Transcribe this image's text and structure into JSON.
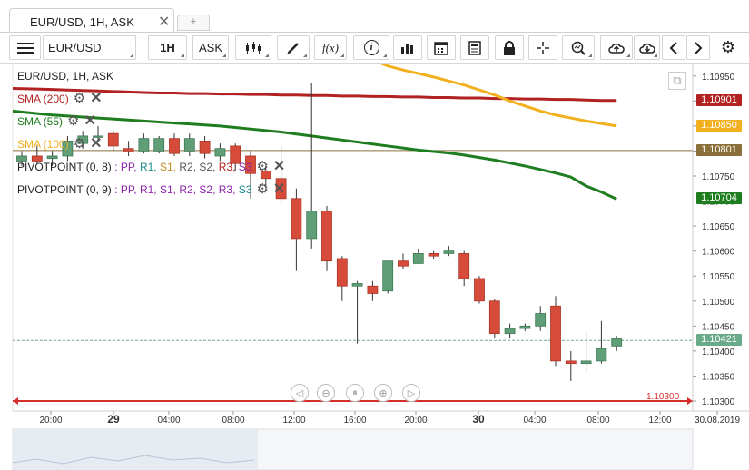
{
  "tab": {
    "title": "EUR/USD, 1H, ASK",
    "close": "✕",
    "add": "+"
  },
  "toolbar": {
    "symbol": "EUR/USD",
    "period": "1H",
    "side": "ASK",
    "icons": [
      "menu-icon",
      "candlestick-icon",
      "pencil-icon",
      "function-icon",
      "info-icon",
      "bar-chart-icon",
      "calendar-icon",
      "document-icon",
      "lock-icon",
      "crosshair-icon",
      "zoom-icon",
      "upload-icon",
      "download-icon",
      "chevron-left-icon",
      "chevron-right-icon",
      "gear-icon"
    ],
    "fx_label": "f(x)",
    "info_label": "i"
  },
  "chart_title": "EUR/USD, 1H, ASK",
  "indicators": [
    {
      "label": "SMA (200)",
      "color": "#b22222"
    },
    {
      "label": "SMA (55)",
      "color": "#1e7d1e"
    },
    {
      "label": "SMA (100)",
      "color": "#f2b01e"
    }
  ],
  "pivots": [
    {
      "label": "PIVOTPOINT (0, 8)",
      "parts": [
        ": PP,",
        "R1,",
        "S1,",
        "R2,",
        "S2,",
        "R3,",
        "S3"
      ]
    },
    {
      "label": "PIVOTPOINT (0, 9)",
      "parts": [
        ": PP,",
        "R1,",
        "S1,",
        "R2,",
        "S2,",
        "R3,",
        "S3"
      ]
    }
  ],
  "price_axis": [
    "1.10950",
    "1.10900",
    "1.10850",
    "1.10800",
    "1.10750",
    "1.10700",
    "1.10650",
    "1.10600",
    "1.10550",
    "1.10500",
    "1.10450",
    "1.10400",
    "1.10350",
    "1.10300"
  ],
  "price_tags": [
    {
      "value": "1.10901",
      "color": "#b22222"
    },
    {
      "value": "1.10850",
      "color": "#f2b01e"
    },
    {
      "value": "1.10801",
      "color": "#8b6f3a"
    },
    {
      "value": "1.10704",
      "color": "#1e7d1e"
    },
    {
      "value": "1.10421",
      "color": "#6aaa8a"
    }
  ],
  "line_label": "1.10300",
  "time_axis": [
    "20:00",
    "29",
    "04:00",
    "08:00",
    "12:00",
    "16:00",
    "20:00",
    "30",
    "04:00",
    "08:00",
    "12:00",
    "30.08.2019"
  ],
  "nav_buttons": [
    "◁",
    "⊖",
    "⏸",
    "⊕",
    "▷"
  ],
  "chart_data": {
    "type": "candlestick",
    "title": "EUR/USD, 1H, ASK",
    "ylim": [
      1.1028,
      1.1098
    ],
    "candles": [
      {
        "o": 1.1078,
        "h": 1.108,
        "l": 1.1077,
        "c": 1.1079
      },
      {
        "o": 1.1079,
        "h": 1.1081,
        "l": 1.10775,
        "c": 1.1078
      },
      {
        "o": 1.10785,
        "h": 1.108,
        "l": 1.1077,
        "c": 1.1079
      },
      {
        "o": 1.1079,
        "h": 1.1083,
        "l": 1.1078,
        "c": 1.1082
      },
      {
        "o": 1.10815,
        "h": 1.1084,
        "l": 1.10805,
        "c": 1.1083
      },
      {
        "o": 1.1083,
        "h": 1.1085,
        "l": 1.1082,
        "c": 1.1083
      },
      {
        "o": 1.10835,
        "h": 1.1084,
        "l": 1.108,
        "c": 1.1081
      },
      {
        "o": 1.10805,
        "h": 1.1082,
        "l": 1.1079,
        "c": 1.108
      },
      {
        "o": 1.108,
        "h": 1.10835,
        "l": 1.10795,
        "c": 1.10825
      },
      {
        "o": 1.108,
        "h": 1.1083,
        "l": 1.10795,
        "c": 1.10825
      },
      {
        "o": 1.10825,
        "h": 1.10835,
        "l": 1.1079,
        "c": 1.10795
      },
      {
        "o": 1.108,
        "h": 1.10835,
        "l": 1.1079,
        "c": 1.10825
      },
      {
        "o": 1.1082,
        "h": 1.1083,
        "l": 1.10785,
        "c": 1.10795
      },
      {
        "o": 1.1079,
        "h": 1.10815,
        "l": 1.1078,
        "c": 1.10805
      },
      {
        "o": 1.1081,
        "h": 1.10815,
        "l": 1.1076,
        "c": 1.10775
      },
      {
        "o": 1.1079,
        "h": 1.108,
        "l": 1.10705,
        "c": 1.10755
      },
      {
        "o": 1.1076,
        "h": 1.1077,
        "l": 1.1073,
        "c": 1.10745
      },
      {
        "o": 1.10745,
        "h": 1.1081,
        "l": 1.10695,
        "c": 1.10705
      },
      {
        "o": 1.10705,
        "h": 1.10725,
        "l": 1.1056,
        "c": 1.10625
      },
      {
        "o": 1.10625,
        "h": 1.10935,
        "l": 1.10605,
        "c": 1.1068
      },
      {
        "o": 1.1068,
        "h": 1.1069,
        "l": 1.1056,
        "c": 1.1058
      },
      {
        "o": 1.10585,
        "h": 1.1059,
        "l": 1.105,
        "c": 1.1053
      },
      {
        "o": 1.1053,
        "h": 1.1054,
        "l": 1.10415,
        "c": 1.10535
      },
      {
        "o": 1.1053,
        "h": 1.1054,
        "l": 1.105,
        "c": 1.10515
      },
      {
        "o": 1.1052,
        "h": 1.1058,
        "l": 1.10515,
        "c": 1.1058
      },
      {
        "o": 1.1058,
        "h": 1.10595,
        "l": 1.10565,
        "c": 1.1057
      },
      {
        "o": 1.10575,
        "h": 1.10605,
        "l": 1.10575,
        "c": 1.10595
      },
      {
        "o": 1.10595,
        "h": 1.106,
        "l": 1.10585,
        "c": 1.1059
      },
      {
        "o": 1.10595,
        "h": 1.1061,
        "l": 1.1059,
        "c": 1.106
      },
      {
        "o": 1.10595,
        "h": 1.106,
        "l": 1.1053,
        "c": 1.10545
      },
      {
        "o": 1.10545,
        "h": 1.1055,
        "l": 1.10495,
        "c": 1.105
      },
      {
        "o": 1.105,
        "h": 1.10505,
        "l": 1.10425,
        "c": 1.10435
      },
      {
        "o": 1.10435,
        "h": 1.10455,
        "l": 1.10425,
        "c": 1.10445
      },
      {
        "o": 1.10445,
        "h": 1.10455,
        "l": 1.1044,
        "c": 1.1045
      },
      {
        "o": 1.1045,
        "h": 1.1049,
        "l": 1.1044,
        "c": 1.10475
      },
      {
        "o": 1.1049,
        "h": 1.1051,
        "l": 1.1037,
        "c": 1.1038
      },
      {
        "o": 1.1038,
        "h": 1.104,
        "l": 1.1034,
        "c": 1.10375
      },
      {
        "o": 1.10375,
        "h": 1.1044,
        "l": 1.10355,
        "c": 1.1038
      },
      {
        "o": 1.1038,
        "h": 1.1046,
        "l": 1.10375,
        "c": 1.10405
      },
      {
        "o": 1.1041,
        "h": 1.1043,
        "l": 1.104,
        "c": 1.10425
      }
    ],
    "series": [
      {
        "name": "SMA (200)",
        "color": "#b22222",
        "values": [
          1.10925,
          1.10924,
          1.10923,
          1.10922,
          1.10921,
          1.1092,
          1.10919,
          1.10918,
          1.10917,
          1.10916,
          1.10916,
          1.10915,
          1.10915,
          1.10914,
          1.10914,
          1.10913,
          1.10913,
          1.10912,
          1.10912,
          1.10911,
          1.10911,
          1.1091,
          1.1091,
          1.10909,
          1.10909,
          1.10908,
          1.10908,
          1.10907,
          1.10907,
          1.10906,
          1.10906,
          1.10905,
          1.10905,
          1.10904,
          1.10904,
          1.10903,
          1.10903,
          1.10902,
          1.10901,
          1.10901
        ]
      },
      {
        "name": "SMA (55)",
        "color": "#1e7d1e",
        "values": [
          1.1088,
          1.10875,
          1.10872,
          1.1087,
          1.10868,
          1.10866,
          1.10864,
          1.10862,
          1.1086,
          1.10858,
          1.10856,
          1.10854,
          1.10852,
          1.1085,
          1.10847,
          1.10844,
          1.10841,
          1.10838,
          1.10834,
          1.1083,
          1.10826,
          1.10822,
          1.10818,
          1.10814,
          1.1081,
          1.10806,
          1.10802,
          1.10799,
          1.10796,
          1.10792,
          1.10787,
          1.10782,
          1.10776,
          1.1077,
          1.10763,
          1.10756,
          1.10748,
          1.1073,
          1.10718,
          1.10704
        ]
      },
      {
        "name": "SMA (100)",
        "color": "#f2b01e",
        "values": [
          null,
          null,
          null,
          null,
          null,
          null,
          null,
          null,
          null,
          null,
          null,
          null,
          null,
          null,
          null,
          null,
          null,
          null,
          null,
          null,
          null,
          null,
          null,
          null,
          1.1097,
          1.10962,
          1.10955,
          1.10948,
          1.1094,
          1.10932,
          1.10922,
          1.10912,
          1.109,
          1.1089,
          1.1088,
          1.10872,
          1.10866,
          1.1086,
          1.10855,
          1.1085
        ]
      }
    ],
    "hlines": [
      {
        "value": 1.10801,
        "color": "#8b6f3a"
      },
      {
        "value": 1.103,
        "color": "#d62d2d"
      },
      {
        "value": 1.10421,
        "color": "#6aaa8a",
        "dashed": true
      }
    ]
  }
}
